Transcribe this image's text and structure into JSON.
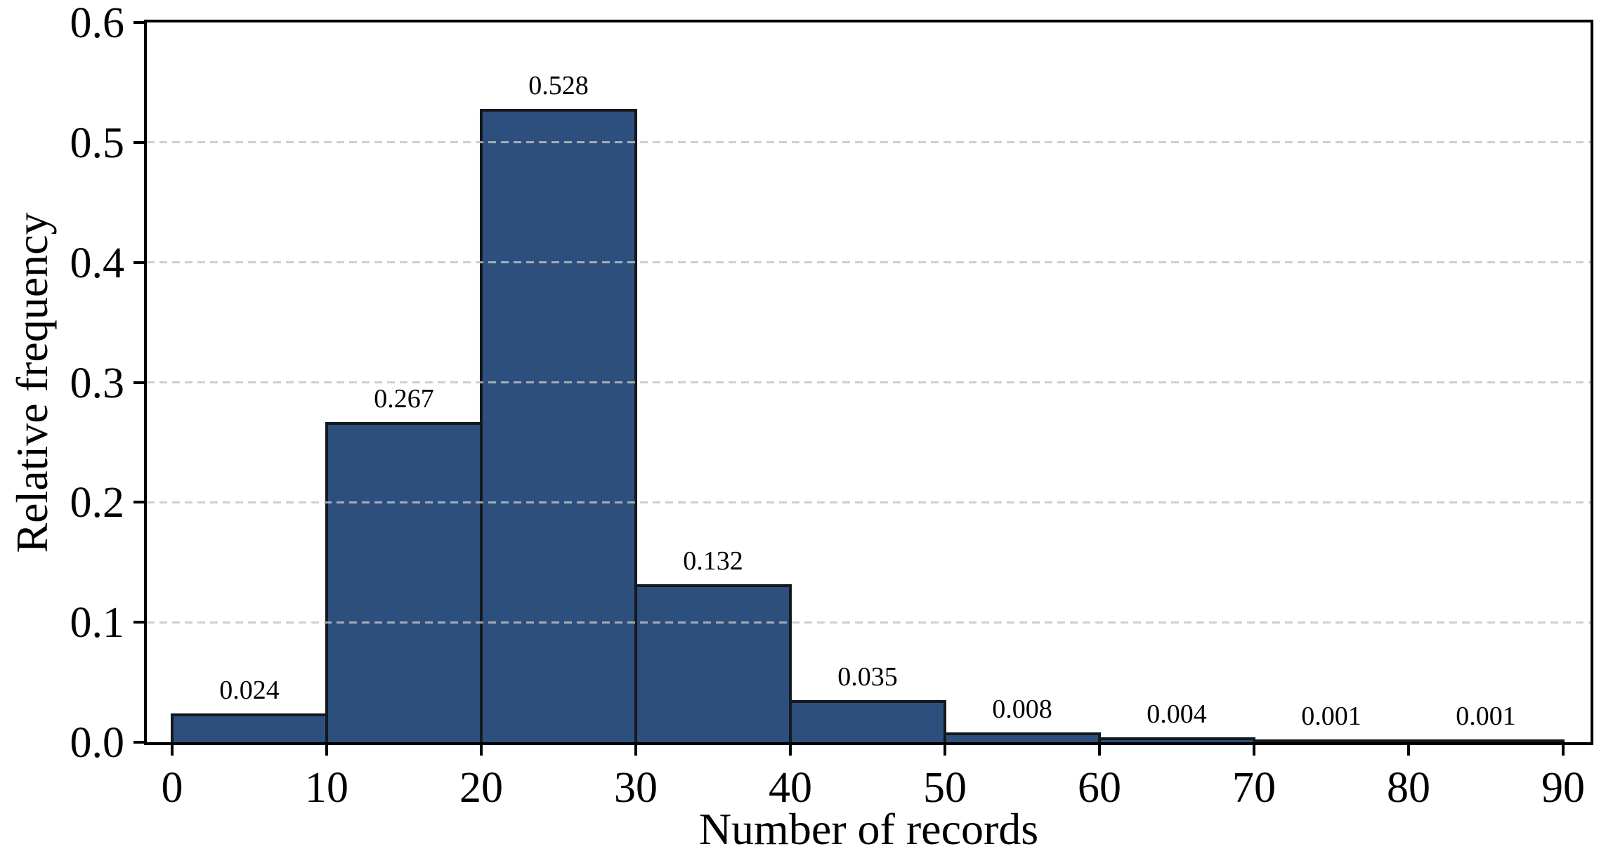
{
  "chart_data": {
    "type": "bar",
    "title": "",
    "xlabel": "Number of records",
    "ylabel": "Relative frequency",
    "bin_width": 10,
    "bin_starts": [
      0,
      10,
      20,
      30,
      40,
      50,
      60,
      70,
      80
    ],
    "values": [
      0.024,
      0.267,
      0.528,
      0.132,
      0.035,
      0.008,
      0.004,
      0.001,
      0.001
    ],
    "bar_labels": [
      "0.024",
      "0.267",
      "0.528",
      "0.132",
      "0.035",
      "0.008",
      "0.004",
      "0.001",
      "0.001"
    ],
    "x_ticks": [
      0,
      10,
      20,
      30,
      40,
      50,
      60,
      70,
      80,
      90
    ],
    "x_tick_labels": [
      "0",
      "10",
      "20",
      "30",
      "40",
      "50",
      "60",
      "70",
      "80",
      "90"
    ],
    "y_ticks": [
      0.0,
      0.1,
      0.2,
      0.3,
      0.4,
      0.5,
      0.6
    ],
    "y_tick_labels": [
      "0.0",
      "0.1",
      "0.2",
      "0.3",
      "0.4",
      "0.5",
      "0.6"
    ],
    "gridline_y_values": [
      0.1,
      0.2,
      0.3,
      0.4,
      0.5
    ],
    "xlim": [
      -1.6,
      91.8
    ],
    "ylim": [
      0.0,
      0.6
    ],
    "grid": "horizontal dashed",
    "legend": null
  },
  "colors": {
    "bar_fill": "#2D4F7E",
    "bar_edge": "#15181d",
    "axis": "#000000",
    "gridline": "#c3c3c3",
    "text": "#000000",
    "background": "#ffffff"
  }
}
